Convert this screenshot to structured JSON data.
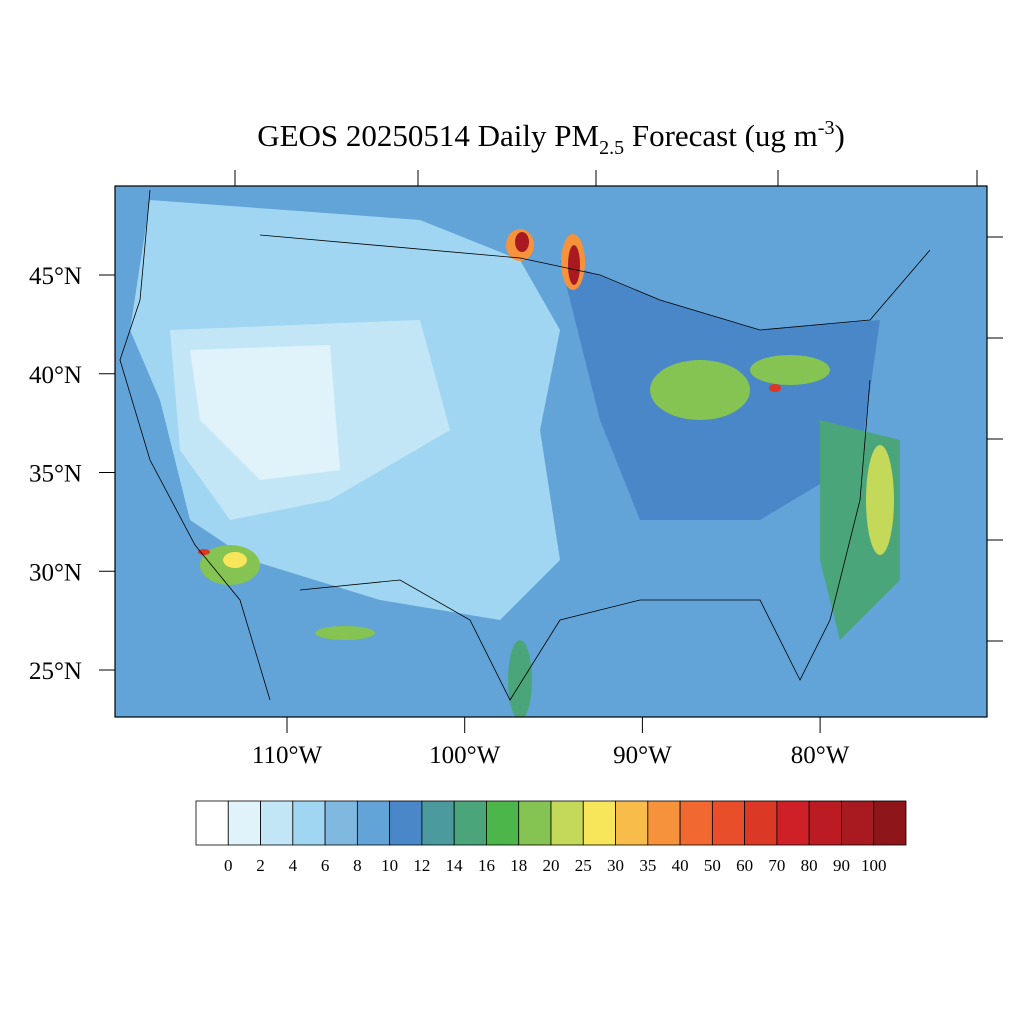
{
  "title": {
    "main": "GEOS 20250514 Daily PM",
    "sub": "2.5",
    "rest": " Forecast (ug m",
    "sup": "-3",
    "end": ")"
  },
  "lat_ticks": [
    {
      "value": 45,
      "label": "45°N"
    },
    {
      "value": 40,
      "label": "40°N"
    },
    {
      "value": 35,
      "label": "35°N"
    },
    {
      "value": 30,
      "label": "30°N"
    },
    {
      "value": 25,
      "label": "25°N"
    }
  ],
  "lon_ticks": [
    {
      "value": -110,
      "label": "110°W"
    },
    {
      "value": -100,
      "label": "100°W"
    },
    {
      "value": -90,
      "label": "90°W"
    },
    {
      "value": -80,
      "label": "80°W"
    }
  ],
  "colorbar": {
    "colors": [
      "#ffffff",
      "#e0f3fb",
      "#c3e6f7",
      "#a0d6f2",
      "#7fb9e0",
      "#62a3d8",
      "#4a87c8",
      "#4a9a9e",
      "#4aa57a",
      "#4db64a",
      "#85c452",
      "#c4d85a",
      "#f7e65a",
      "#f8bc4a",
      "#f6923c",
      "#f16830",
      "#e84e2a",
      "#dc3826",
      "#cf2028",
      "#bb1c24",
      "#a81a20",
      "#8e161a"
    ],
    "labels": [
      0,
      2,
      4,
      6,
      8,
      10,
      12,
      14,
      16,
      18,
      20,
      25,
      30,
      35,
      40,
      50,
      60,
      70,
      80,
      90,
      100
    ]
  }
}
